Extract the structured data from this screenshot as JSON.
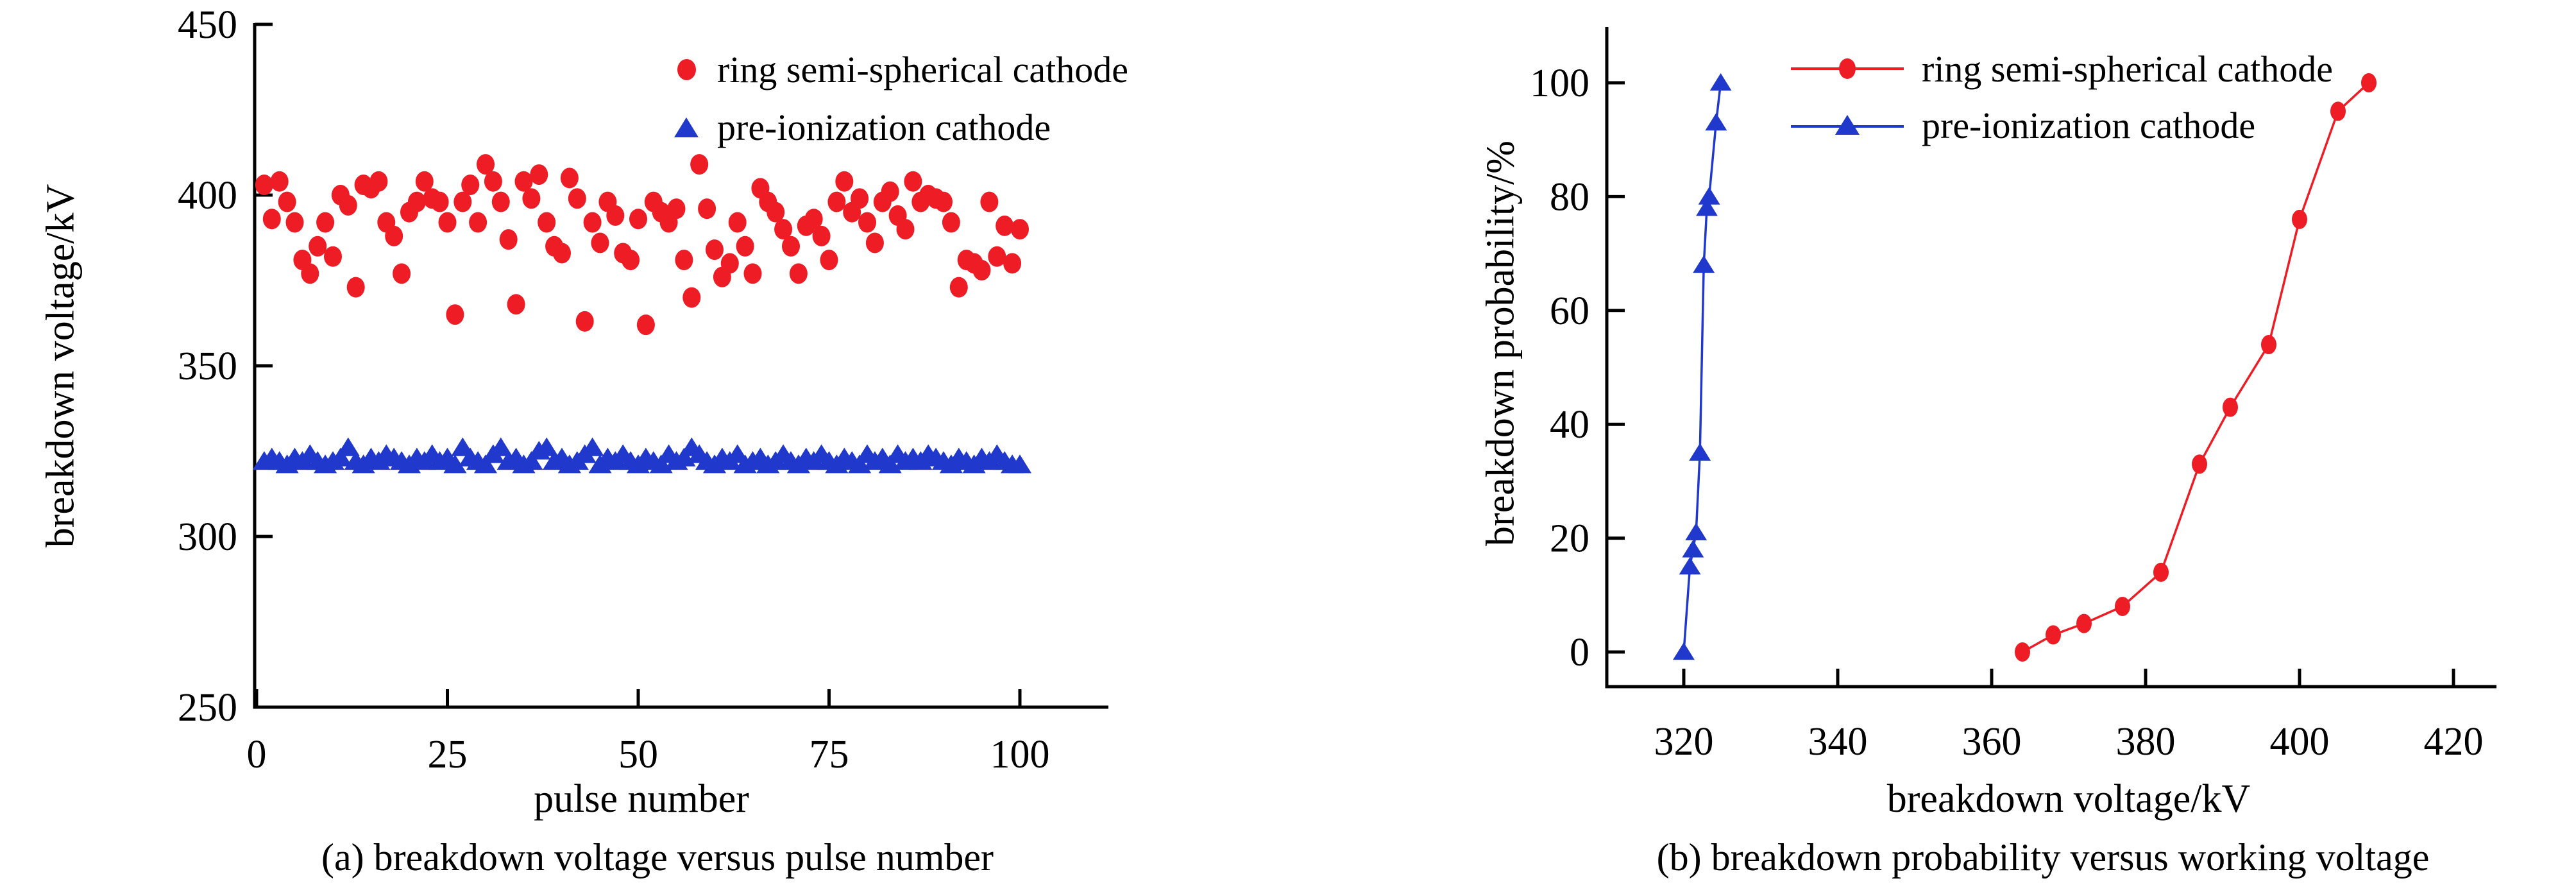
{
  "page": {
    "background": "#ffffff",
    "text_color": "#000000"
  },
  "colors": {
    "series_red": "#ee1c25",
    "series_blue": "#2038cc",
    "axis": "#000000"
  },
  "chart_data": [
    {
      "id": "a",
      "type": "scatter",
      "caption": "(a) breakdown voltage versus pulse number",
      "xlabel": "pulse number",
      "ylabel": "breakdown voltage/kV",
      "xlim": [
        0,
        112
      ],
      "ylim": [
        250,
        450
      ],
      "xticks": [
        0,
        25,
        50,
        75,
        100
      ],
      "yticks": [
        250,
        300,
        350,
        400,
        450
      ],
      "grid": false,
      "legend_position": "top-inside",
      "legend": [
        "ring semi-spherical cathode",
        "pre-ionization cathode"
      ],
      "series": [
        {
          "name": "ring semi-spherical cathode",
          "marker": "circle",
          "color": "#ee1c25",
          "connect": false,
          "x_range": [
            1,
            100
          ],
          "y": [
            403,
            393,
            404,
            398,
            392,
            381,
            377,
            385,
            392,
            382,
            400,
            397,
            373,
            403,
            402,
            404,
            392,
            388,
            377,
            395,
            398,
            404,
            399,
            398,
            392,
            365,
            398,
            403,
            392,
            409,
            404,
            398,
            387,
            368,
            404,
            399,
            406,
            392,
            385,
            383,
            405,
            399,
            363,
            392,
            386,
            398,
            394,
            383,
            381,
            393,
            362,
            398,
            395,
            392,
            396,
            381,
            370,
            409,
            396,
            384,
            376,
            380,
            392,
            385,
            377,
            402,
            398,
            395,
            390,
            385,
            377,
            391,
            393,
            388,
            381,
            398,
            404,
            395,
            399,
            392,
            386,
            398,
            401,
            394,
            390,
            404,
            398,
            400,
            399,
            398,
            392,
            373,
            381,
            380,
            378,
            398,
            382,
            391,
            380,
            390
          ]
        },
        {
          "name": "pre-ionization cathode",
          "marker": "triangle",
          "color": "#2038cc",
          "connect": false,
          "x_range": [
            1,
            100
          ],
          "y": [
            322,
            323,
            322,
            321,
            323,
            322,
            324,
            322,
            321,
            322,
            323,
            326,
            322,
            321,
            323,
            322,
            324,
            323,
            322,
            321,
            323,
            322,
            324,
            322,
            323,
            321,
            326,
            323,
            322,
            321,
            324,
            326,
            322,
            323,
            321,
            322,
            325,
            326,
            322,
            323,
            321,
            322,
            324,
            326,
            321,
            323,
            322,
            324,
            322,
            321,
            323,
            322,
            321,
            324,
            322,
            323,
            326,
            324,
            322,
            321,
            323,
            322,
            324,
            321,
            322,
            323,
            321,
            322,
            324,
            322,
            321,
            323,
            322,
            324,
            322,
            321,
            323,
            322,
            321,
            324,
            322,
            323,
            321,
            324,
            322,
            323,
            322,
            324,
            323,
            322,
            321,
            323,
            322,
            321,
            323,
            322,
            324,
            322,
            321,
            321
          ]
        }
      ]
    },
    {
      "id": "b",
      "type": "line",
      "caption": "(b) breakdown probability versus working voltage",
      "xlabel": "breakdown voltage/kV",
      "ylabel": "breakdown probability/%",
      "xlim": [
        310,
        428
      ],
      "ylim": [
        -12,
        112
      ],
      "xticks": [
        320,
        340,
        360,
        380,
        400,
        420
      ],
      "yticks": [
        0,
        20,
        40,
        60,
        80,
        100
      ],
      "grid": false,
      "legend_position": "top-inside",
      "legend": [
        "ring semi-spherical cathode",
        "pre-ionization cathode"
      ],
      "series": [
        {
          "name": "ring semi-spherical cathode",
          "marker": "circle",
          "color": "#ee1c25",
          "connect": true,
          "x": [
            364,
            368,
            372,
            377,
            382,
            387,
            391,
            396,
            400,
            405,
            409
          ],
          "y": [
            0,
            3,
            5,
            8,
            14,
            33,
            43,
            54,
            76,
            95,
            100
          ]
        },
        {
          "name": "pre-ionization cathode",
          "marker": "triangle",
          "color": "#2038cc",
          "connect": true,
          "x": [
            320,
            320.8,
            321.2,
            321.6,
            322.1,
            322.6,
            323,
            323.3,
            324.2,
            324.8
          ],
          "y": [
            0,
            15,
            18,
            21,
            35,
            68,
            78,
            80,
            93,
            100
          ]
        }
      ]
    }
  ]
}
